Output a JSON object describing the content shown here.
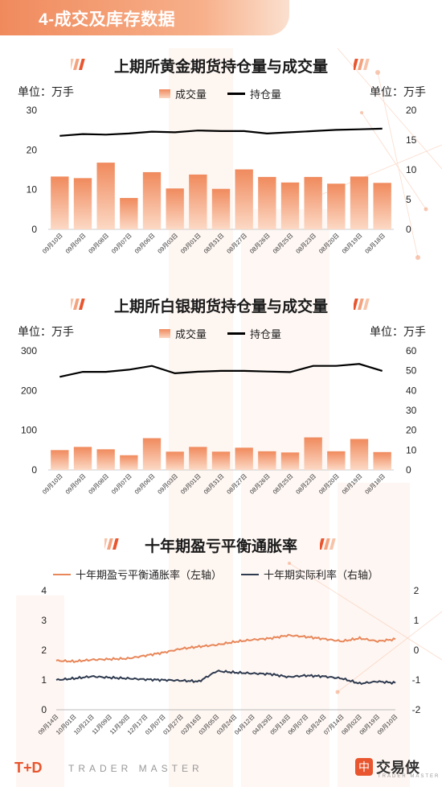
{
  "header": {
    "title": "4-成交及库存数据"
  },
  "charts": [
    {
      "title": "上期所黄金期货持仓量与成交量",
      "unit_left": "单位：万手",
      "unit_right": "单位：万手",
      "legend_bar": "成交量",
      "legend_line": "持仓量"
    },
    {
      "title": "上期所白银期货持仓量与成交量",
      "unit_left": "单位：万手",
      "unit_right": "单位：万手",
      "legend_bar": "成交量",
      "legend_line": "持仓量"
    },
    {
      "title": "十年期盈亏平衡通胀率",
      "legend_a": "十年期盈亏平衡通胀率（左轴）",
      "legend_b": "十年期实际利率（右轴）"
    }
  ],
  "chart_data": [
    {
      "type": "bar",
      "title": "上期所黄金期货持仓量与成交量",
      "categories": [
        "09月10日",
        "09月09日",
        "09月08日",
        "09月07日",
        "09月06日",
        "09月03日",
        "09月01日",
        "08月31日",
        "08月27日",
        "08月26日",
        "08月25日",
        "08月23日",
        "08月20日",
        "08月19日",
        "08月18日"
      ],
      "series": [
        {
          "name": "成交量",
          "type": "bar",
          "axis": "left",
          "values": [
            13.3,
            12.9,
            16.8,
            7.9,
            14.4,
            10.3,
            13.8,
            10.2,
            15.1,
            13.2,
            11.8,
            13.2,
            11.5,
            13.3,
            11.7
          ]
        },
        {
          "name": "持仓量",
          "type": "line",
          "axis": "right",
          "values": [
            15.7,
            16.0,
            15.9,
            16.1,
            16.4,
            16.3,
            16.6,
            16.5,
            16.5,
            16.1,
            16.3,
            16.5,
            16.7,
            16.8,
            16.9
          ]
        }
      ],
      "ylim_left": [
        0,
        30
      ],
      "yticks_left": [
        0,
        10,
        20,
        30
      ],
      "ylim_right": [
        0,
        20
      ],
      "yticks_right": [
        0,
        5,
        10,
        15,
        20
      ],
      "colors": {
        "bar": "#f08a5d",
        "line": "#000000"
      }
    },
    {
      "type": "bar",
      "title": "上期所白银期货持仓量与成交量",
      "categories": [
        "09月10日",
        "09月09日",
        "09月08日",
        "09月07日",
        "09月06日",
        "09月03日",
        "09月01日",
        "08月31日",
        "08月27日",
        "08月26日",
        "08月25日",
        "08月23日",
        "08月20日",
        "08月19日",
        "08月18日"
      ],
      "series": [
        {
          "name": "成交量",
          "type": "bar",
          "axis": "left",
          "values": [
            50,
            58,
            52,
            37,
            80,
            46,
            58,
            46,
            56,
            47,
            44,
            82,
            47,
            78,
            45
          ]
        },
        {
          "name": "持仓量",
          "type": "line",
          "axis": "right",
          "values": [
            46.9,
            49.4,
            49.4,
            50.5,
            52.4,
            48.7,
            49.5,
            49.9,
            49.9,
            49.6,
            49.3,
            52.4,
            52.4,
            53.4,
            49.9
          ]
        }
      ],
      "ylim_left": [
        0,
        300
      ],
      "yticks_left": [
        0,
        100,
        200,
        300
      ],
      "ylim_right": [
        0,
        60
      ],
      "yticks_right": [
        0,
        10,
        20,
        30,
        40,
        50,
        60
      ],
      "colors": {
        "bar": "#f08a5d",
        "line": "#000000"
      }
    },
    {
      "type": "line",
      "title": "十年期盈亏平衡通胀率",
      "x": [
        "09月14日",
        "10月01日",
        "10月21日",
        "11月09日",
        "11月30日",
        "12月17日",
        "01月07日",
        "01月27日",
        "02月16日",
        "03月05日",
        "03月24日",
        "04月12日",
        "04月29日",
        "05月18日",
        "06月07日",
        "06月24日",
        "07月14日",
        "08月02日",
        "08月19日",
        "09月10日"
      ],
      "series": [
        {
          "name": "十年期盈亏平衡通胀率（左轴）",
          "axis": "left",
          "values": [
            1.65,
            1.62,
            1.68,
            1.7,
            1.72,
            1.82,
            1.92,
            2.05,
            2.12,
            2.18,
            2.28,
            2.35,
            2.4,
            2.5,
            2.45,
            2.38,
            2.3,
            2.4,
            2.3,
            2.37
          ]
        },
        {
          "name": "十年期实际利率（右轴）",
          "axis": "right",
          "values": [
            -1.0,
            -0.95,
            -0.88,
            -0.92,
            -0.95,
            -0.98,
            -1.0,
            -1.02,
            -1.05,
            -0.7,
            -0.75,
            -0.78,
            -0.8,
            -0.9,
            -0.85,
            -0.88,
            -0.95,
            -1.12,
            -1.05,
            -1.1
          ]
        }
      ],
      "ylim_left": [
        0,
        4
      ],
      "yticks_left": [
        0,
        1,
        2,
        3,
        4
      ],
      "ylim_right": [
        -2,
        2
      ],
      "yticks_right": [
        -2,
        -1,
        0,
        1,
        2
      ],
      "colors": {
        "a": "#e8875a",
        "b": "#2e3a4f"
      }
    }
  ],
  "footer": {
    "logo": "T+D",
    "tagline": "TRADER MASTER",
    "brand": "交易侠",
    "brand_sub": "TRADER MASTER",
    "brand_icon": "中"
  }
}
